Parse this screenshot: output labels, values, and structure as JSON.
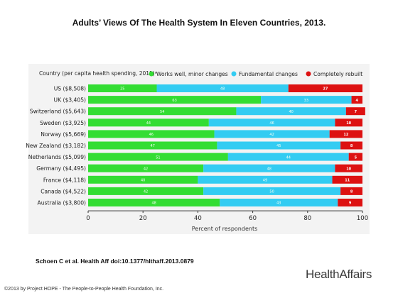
{
  "slide": {
    "title": "Adults’ Views Of The Health System In Eleven Countries, 2013.",
    "citation": "Schoen C et al. Health Aff doi:10.1377/hlthaff.2013.0879",
    "logo": "HealthAffairs",
    "copyright": "©2013 by Project HOPE - The People-to-People Health Foundation, Inc."
  },
  "chart_data": {
    "type": "bar",
    "orientation": "horizontal",
    "stacked": true,
    "y_axis_title": "Country (per capita health spending, 2011)ᵃ",
    "xlabel": "Percent of respondents",
    "xlim": [
      0,
      100
    ],
    "xticks": [
      "0",
      "20",
      "40",
      "60",
      "80",
      "100"
    ],
    "legend_position": "top",
    "categories": [
      "US ($8,508)",
      "UK ($3,405)",
      "Switzerland ($5,643)",
      "Sweden ($3,925)",
      "Norway ($5,669)",
      "New Zealand ($3,182)",
      "Netherlands ($5,099)",
      "Germany ($4,495)",
      "France ($4,118)",
      "Canada ($4,522)",
      "Australia ($3,800)"
    ],
    "series": [
      {
        "name": "Works well, minor changes",
        "color": "#33dd33",
        "values": [
          25,
          63,
          54,
          44,
          46,
          47,
          51,
          42,
          40,
          42,
          48
        ]
      },
      {
        "name": "Fundamental changes",
        "color": "#33ccf2",
        "values": [
          48,
          33,
          40,
          46,
          42,
          45,
          44,
          48,
          49,
          50,
          43
        ]
      },
      {
        "name": "Completely rebuilt",
        "color": "#dd1111",
        "values": [
          27,
          4,
          7,
          10,
          12,
          8,
          5,
          10,
          11,
          8,
          9
        ]
      }
    ]
  }
}
